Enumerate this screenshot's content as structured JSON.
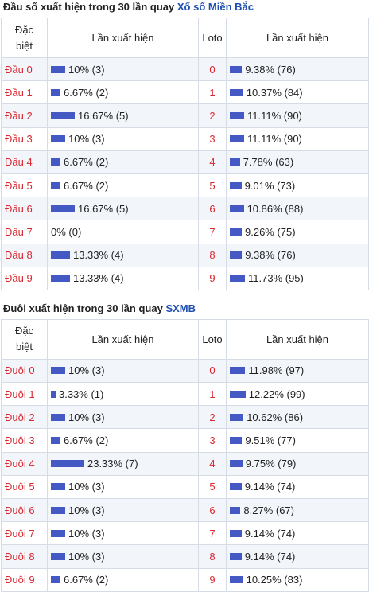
{
  "section1": {
    "title_prefix": "Đầu số xuất hiện trong 30 lần quay",
    "title_link": "Xổ số Miền Bắc",
    "headers": {
      "col1": "Đặc biệt",
      "col2": "Lần xuất hiện",
      "col3": "Loto",
      "col4": "Lần xuất hiện"
    },
    "rows": [
      {
        "label": "Đầu 0",
        "db_pct": 10,
        "db_text": "10% (3)",
        "loto": "0",
        "lo_pct": 9.38,
        "lo_text": "9.38% (76)"
      },
      {
        "label": "Đầu 1",
        "db_pct": 6.67,
        "db_text": "6.67% (2)",
        "loto": "1",
        "lo_pct": 10.37,
        "lo_text": "10.37% (84)"
      },
      {
        "label": "Đầu 2",
        "db_pct": 16.67,
        "db_text": "16.67% (5)",
        "loto": "2",
        "lo_pct": 11.11,
        "lo_text": "11.11% (90)"
      },
      {
        "label": "Đầu 3",
        "db_pct": 10,
        "db_text": "10% (3)",
        "loto": "3",
        "lo_pct": 11.11,
        "lo_text": "11.11% (90)"
      },
      {
        "label": "Đầu 4",
        "db_pct": 6.67,
        "db_text": "6.67% (2)",
        "loto": "4",
        "lo_pct": 7.78,
        "lo_text": "7.78% (63)"
      },
      {
        "label": "Đầu 5",
        "db_pct": 6.67,
        "db_text": "6.67% (2)",
        "loto": "5",
        "lo_pct": 9.01,
        "lo_text": "9.01% (73)"
      },
      {
        "label": "Đầu 6",
        "db_pct": 16.67,
        "db_text": "16.67% (5)",
        "loto": "6",
        "lo_pct": 10.86,
        "lo_text": "10.86% (88)"
      },
      {
        "label": "Đầu 7",
        "db_pct": 0,
        "db_text": "0% (0)",
        "loto": "7",
        "lo_pct": 9.26,
        "lo_text": "9.26% (75)"
      },
      {
        "label": "Đầu 8",
        "db_pct": 13.33,
        "db_text": "13.33% (4)",
        "loto": "8",
        "lo_pct": 9.38,
        "lo_text": "9.38% (76)"
      },
      {
        "label": "Đầu 9",
        "db_pct": 13.33,
        "db_text": "13.33% (4)",
        "loto": "9",
        "lo_pct": 11.73,
        "lo_text": "11.73% (95)"
      }
    ]
  },
  "section2": {
    "title_prefix": "Đuôi xuất hiện trong 30 lần quay",
    "title_link": "SXMB",
    "headers": {
      "col1": "Đặc biệt",
      "col2": "Lần xuất hiện",
      "col3": "Loto",
      "col4": "Lần xuất hiện"
    },
    "rows": [
      {
        "label": "Đuôi 0",
        "db_pct": 10,
        "db_text": "10% (3)",
        "loto": "0",
        "lo_pct": 11.98,
        "lo_text": "11.98% (97)"
      },
      {
        "label": "Đuôi 1",
        "db_pct": 3.33,
        "db_text": "3.33% (1)",
        "loto": "1",
        "lo_pct": 12.22,
        "lo_text": "12.22% (99)"
      },
      {
        "label": "Đuôi 2",
        "db_pct": 10,
        "db_text": "10% (3)",
        "loto": "2",
        "lo_pct": 10.62,
        "lo_text": "10.62% (86)"
      },
      {
        "label": "Đuôi 3",
        "db_pct": 6.67,
        "db_text": "6.67% (2)",
        "loto": "3",
        "lo_pct": 9.51,
        "lo_text": "9.51% (77)"
      },
      {
        "label": "Đuôi 4",
        "db_pct": 23.33,
        "db_text": "23.33% (7)",
        "loto": "4",
        "lo_pct": 9.75,
        "lo_text": "9.75% (79)"
      },
      {
        "label": "Đuôi 5",
        "db_pct": 10,
        "db_text": "10% (3)",
        "loto": "5",
        "lo_pct": 9.14,
        "lo_text": "9.14% (74)"
      },
      {
        "label": "Đuôi 6",
        "db_pct": 10,
        "db_text": "10% (3)",
        "loto": "6",
        "lo_pct": 8.27,
        "lo_text": "8.27% (67)"
      },
      {
        "label": "Đuôi 7",
        "db_pct": 10,
        "db_text": "10% (3)",
        "loto": "7",
        "lo_pct": 9.14,
        "lo_text": "9.14% (74)"
      },
      {
        "label": "Đuôi 8",
        "db_pct": 10,
        "db_text": "10% (3)",
        "loto": "8",
        "lo_pct": 9.14,
        "lo_text": "9.14% (74)"
      },
      {
        "label": "Đuôi 9",
        "db_pct": 6.67,
        "db_text": "6.67% (2)",
        "loto": "9",
        "lo_pct": 10.25,
        "lo_text": "10.25% (83)"
      }
    ]
  },
  "colors": {
    "bar": "#4559c4",
    "label": "#d9282f",
    "link": "#1f4fb0"
  }
}
